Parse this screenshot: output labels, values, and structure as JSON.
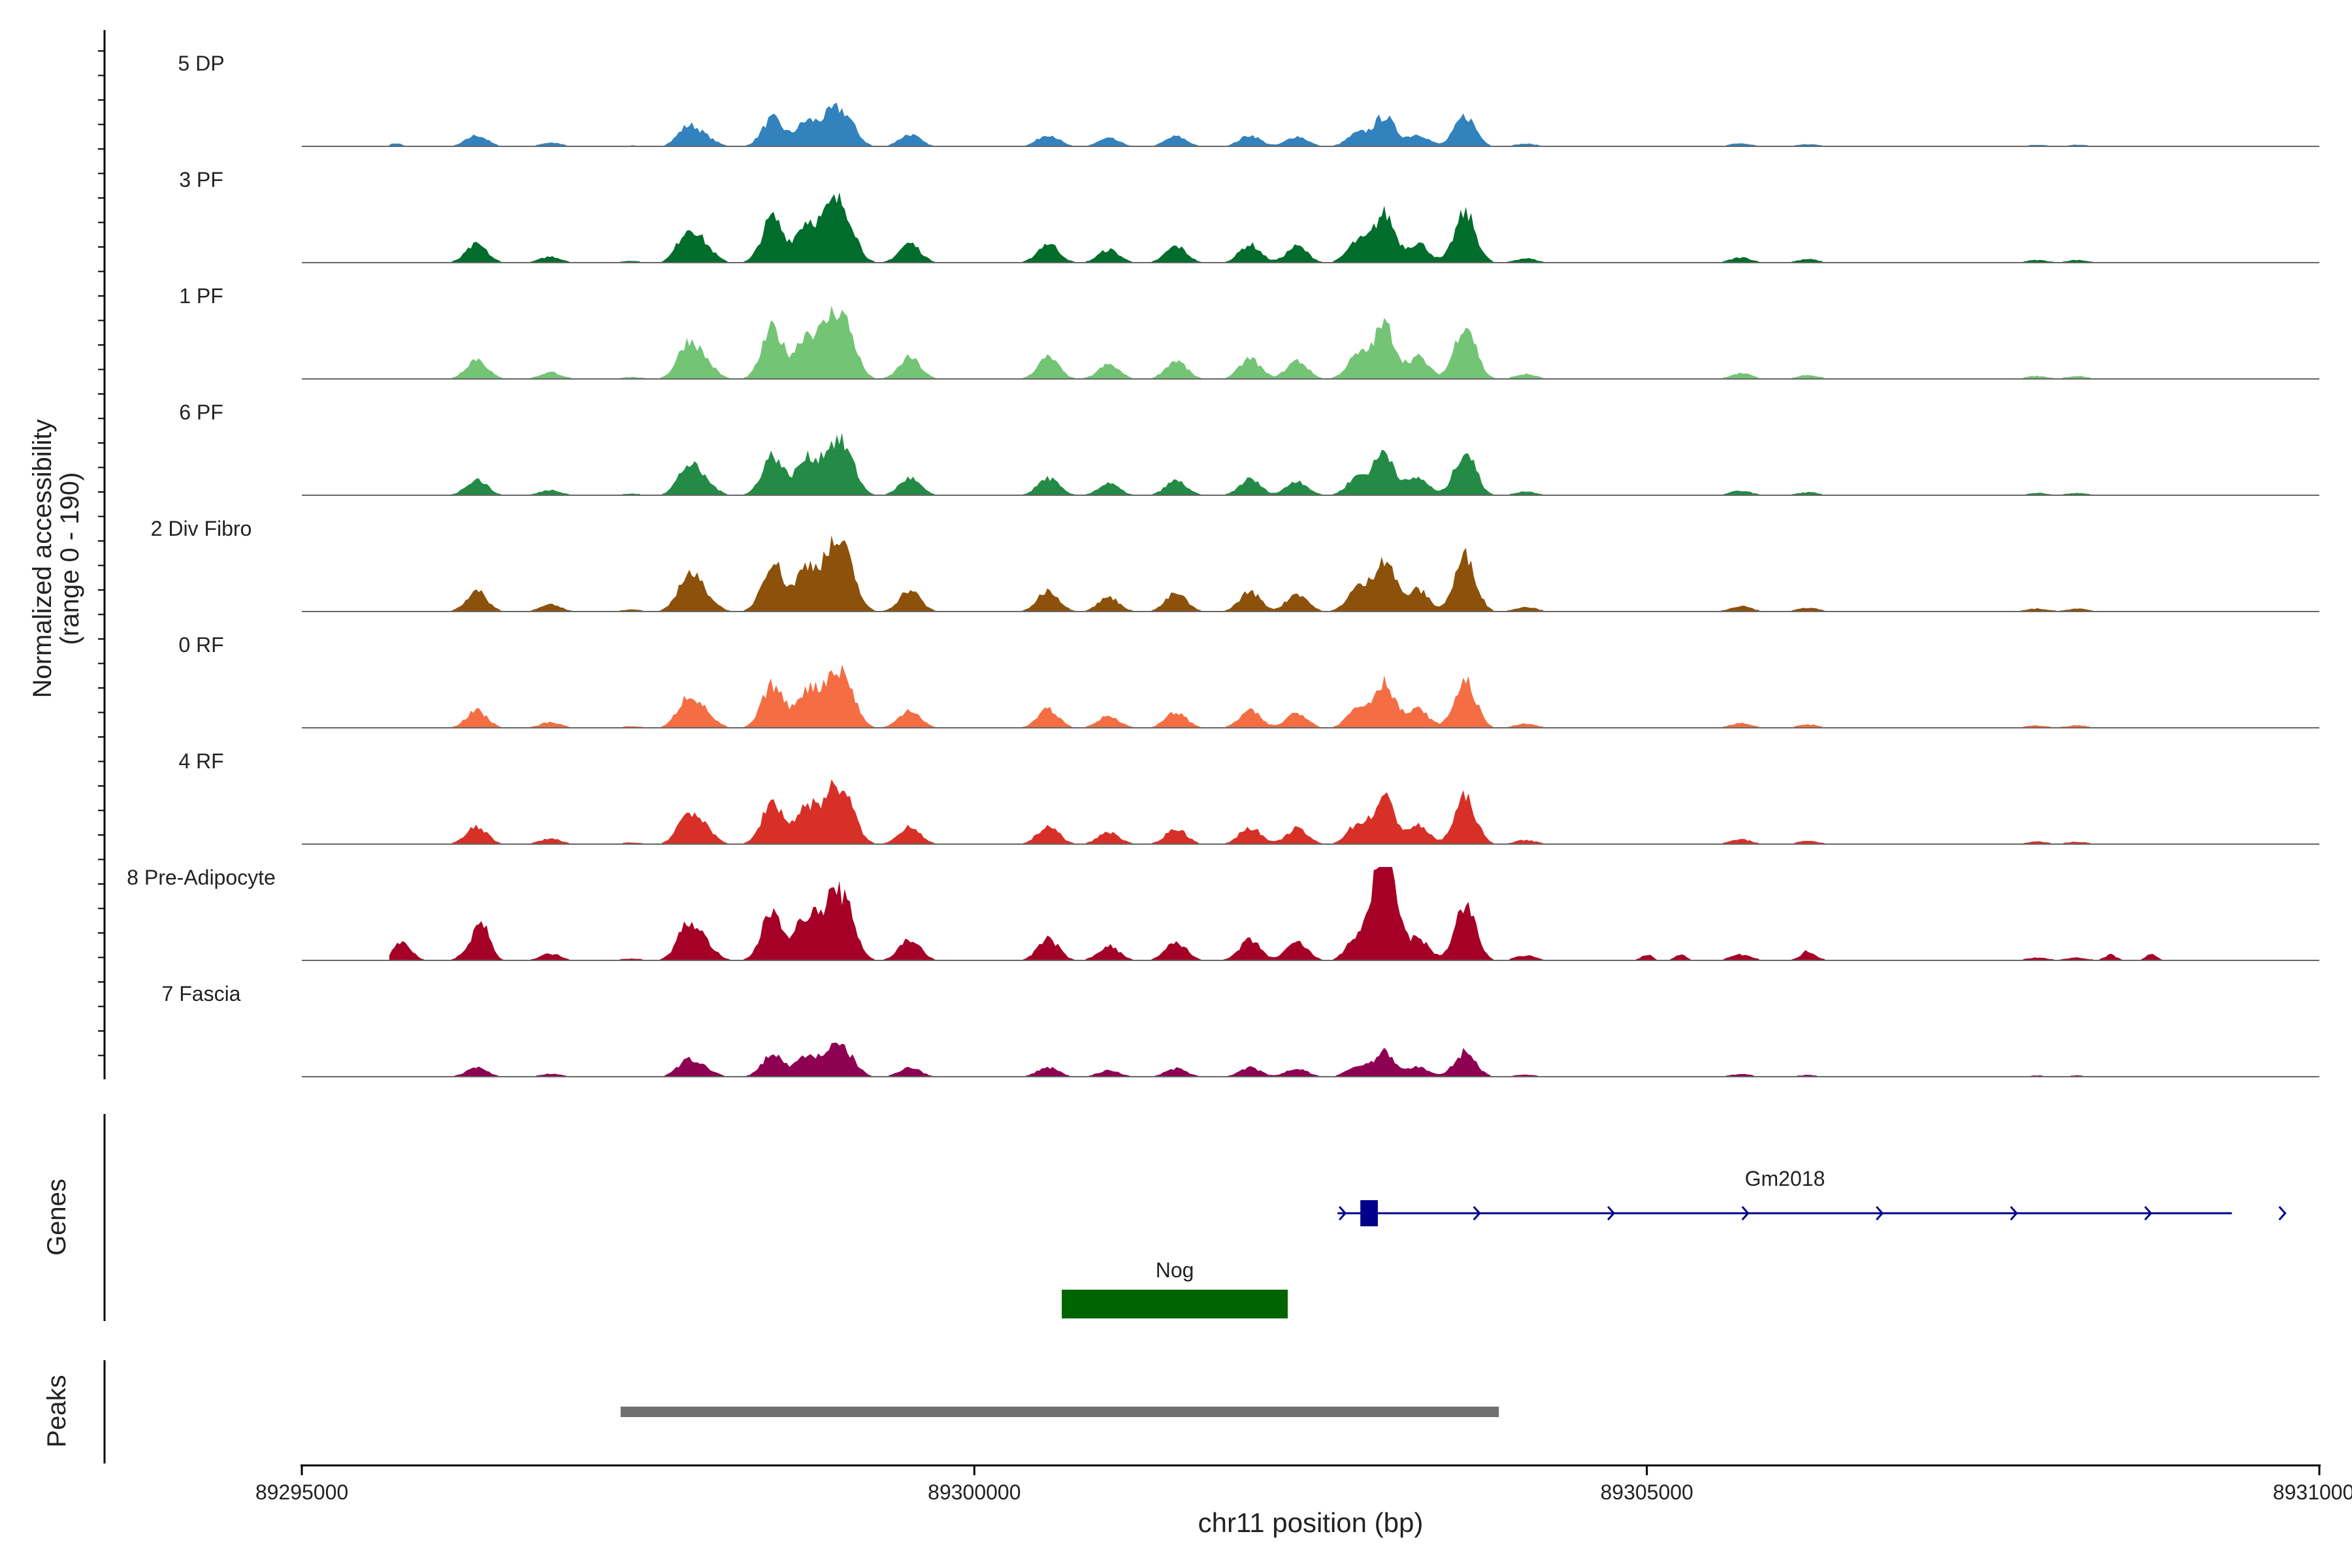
{
  "chart_data": {
    "type": "area",
    "title": "",
    "chromosome": "chr11",
    "xlabel": "chr11 position (bp)",
    "ylabel": "Normalized accessibility",
    "ylabel_range": "(range 0 - 190)",
    "xlim": [
      89295000,
      89310000
    ],
    "ylim": [
      0,
      190
    ],
    "x_ticks": [
      89295000,
      89300000,
      89305000,
      89310000
    ],
    "x_tick_labels": [
      "89295000",
      "89300000",
      "89305000",
      "89310000"
    ],
    "coverage_extent": [
      89295650,
      89309350
    ],
    "track_labels": {
      "genes": "Genes",
      "peaks": "Peaks"
    },
    "peaks_density": [
      [
        89296300,
        42
      ],
      [
        89296850,
        14
      ],
      [
        89297450,
        4
      ],
      [
        89297870,
        72
      ],
      [
        89298000,
        30
      ],
      [
        89298500,
        105
      ],
      [
        89298750,
        90
      ],
      [
        89298930,
        100
      ],
      [
        89299050,
        92
      ],
      [
        89299520,
        45
      ],
      [
        89300550,
        45
      ],
      [
        89301000,
        30
      ],
      [
        89301500,
        38
      ],
      [
        89302050,
        42
      ],
      [
        89302400,
        38
      ],
      [
        89302850,
        48
      ],
      [
        89303050,
        112
      ],
      [
        89303300,
        45
      ],
      [
        89303650,
        115
      ],
      [
        89304100,
        10
      ],
      [
        89305700,
        12
      ],
      [
        89306200,
        8
      ],
      [
        89307900,
        6
      ],
      [
        89308200,
        6
      ]
    ],
    "series": [
      {
        "name": "5 DP",
        "color": "#3182bd",
        "scale": 0.55,
        "extra": [
          [
            89295700,
            12,
            60
          ]
        ]
      },
      {
        "name": "3 PF",
        "color": "#006d2c",
        "scale": 0.9,
        "extra": []
      },
      {
        "name": "1 PF",
        "color": "#74c476",
        "scale": 1.0,
        "extra": []
      },
      {
        "name": "6 PF",
        "color": "#238b45",
        "scale": 0.8,
        "extra": []
      },
      {
        "name": "2 Div Fibro",
        "color": "#8c510a",
        "scale": 1.0,
        "extra": []
      },
      {
        "name": "0 RF",
        "color": "#f46d43",
        "scale": 0.85,
        "extra": []
      },
      {
        "name": "4 RF",
        "color": "#d73027",
        "scale": 0.85,
        "extra": []
      },
      {
        "name": "8 Pre-Adipocyte",
        "color": "#a50026",
        "scale": 1.0,
        "extra": [
          [
            89295750,
            40,
            90
          ],
          [
            89296350,
            42,
            70
          ],
          [
            89303050,
            160,
            110
          ],
          [
            89305000,
            12,
            60
          ],
          [
            89305250,
            12,
            60
          ],
          [
            89306200,
            12,
            60
          ],
          [
            89308450,
            12,
            60
          ],
          [
            89308750,
            12,
            60
          ]
        ]
      },
      {
        "name": "7 Fascia",
        "color": "#8e0152",
        "scale": 0.45,
        "extra": []
      }
    ],
    "genes": [
      {
        "name": "Gm2018",
        "start": 89302700,
        "end": 89309350,
        "strand": "+",
        "color": "#00008b",
        "exon_start": 89302870,
        "exon_end": 89303000
      },
      {
        "name": "Nog",
        "start": 89300650,
        "end": 89302330,
        "strand": "",
        "color": "#006400"
      }
    ],
    "peaks": [
      {
        "start": 89297370,
        "end": 89303900,
        "color": "#707070"
      }
    ]
  }
}
